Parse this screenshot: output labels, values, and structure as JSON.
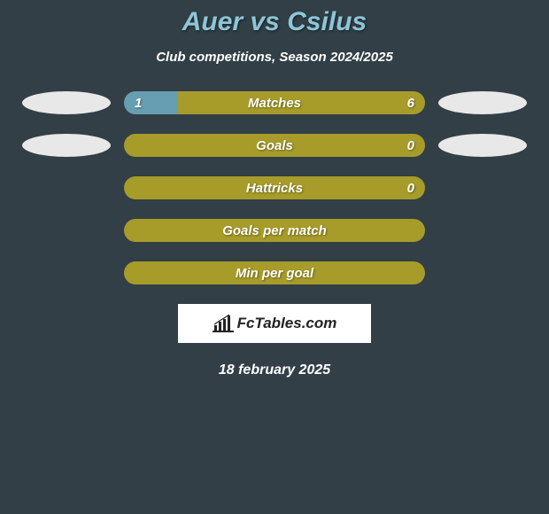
{
  "title": {
    "left": "Auer",
    "vs": "vs",
    "right": "Csilus"
  },
  "subtitle": "Club competitions, Season 2024/2025",
  "colors": {
    "background": "#323f47",
    "title": "#8dc6d6",
    "text": "#ffffff",
    "left_player": "#689eb2",
    "right_player": "#a79c2a",
    "ellipse": "#e8e8e8",
    "logo_bg": "#ffffff",
    "logo_text": "#222222"
  },
  "bars": [
    {
      "id": "matches",
      "label": "Matches",
      "left_val": "1",
      "right_val": "6",
      "left_pct": 18,
      "right_pct": 82,
      "show_ellipses": true
    },
    {
      "id": "goals",
      "label": "Goals",
      "left_val": "",
      "right_val": "0",
      "left_pct": 0,
      "right_pct": 100,
      "show_ellipses": true
    },
    {
      "id": "hattricks",
      "label": "Hattricks",
      "left_val": "",
      "right_val": "0",
      "left_pct": 0,
      "right_pct": 100,
      "show_ellipses": false
    },
    {
      "id": "gpm",
      "label": "Goals per match",
      "left_val": "",
      "right_val": "",
      "left_pct": 0,
      "right_pct": 100,
      "show_ellipses": false
    },
    {
      "id": "mpg",
      "label": "Min per goal",
      "left_val": "",
      "right_val": "",
      "left_pct": 0,
      "right_pct": 100,
      "show_ellipses": false
    }
  ],
  "logo": {
    "brand": "FcTables.com"
  },
  "date": "18 february 2025"
}
